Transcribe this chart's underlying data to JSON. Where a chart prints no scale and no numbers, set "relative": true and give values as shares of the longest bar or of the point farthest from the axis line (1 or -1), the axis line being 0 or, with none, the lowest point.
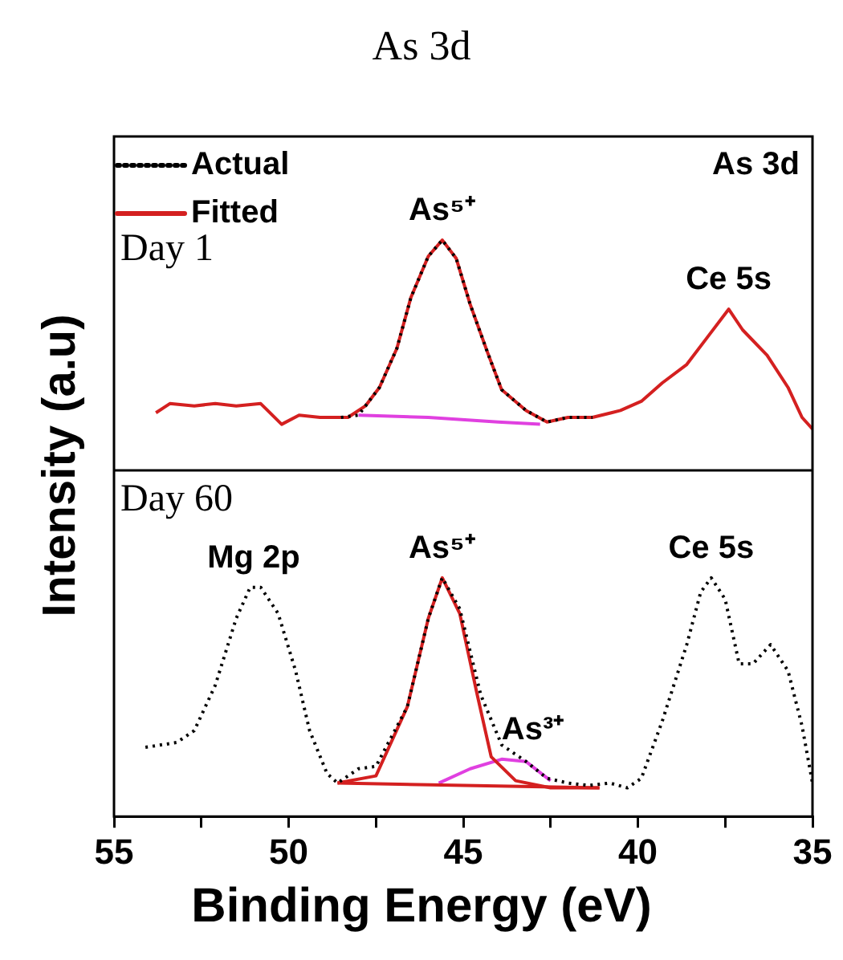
{
  "chart_data": [
    {
      "type": "line",
      "title": "As 3d",
      "subtitle": "Day 1",
      "ylabel": "Intensity (a.u)",
      "relative": true,
      "xlim": [
        55,
        35
      ],
      "tick_labels": false,
      "legend": "top left",
      "annotations": [
        "As 3d",
        {
          "text": "As⁵⁺",
          "x": 45.6,
          "y": 1
        },
        {
          "text": "Ce 5s",
          "x": 37.4,
          "y": 0.7
        }
      ],
      "series": [
        {
          "name": "Actual",
          "color": "#000000",
          "line_style": "dotted",
          "x": [
            48.5,
            48.0,
            47.4,
            46.9,
            46.5,
            46.0,
            45.6,
            45.2,
            44.8,
            44.3,
            43.9,
            43.2,
            42.6,
            42.0,
            41.3
          ],
          "values": [
            0.23,
            0.24,
            0.36,
            0.53,
            0.75,
            0.93,
            1,
            0.92,
            0.72,
            0.51,
            0.35,
            0.26,
            0.21,
            0.23,
            0.23
          ]
        },
        {
          "name": "Fitted",
          "color": "#d42020",
          "x": [
            53.8,
            53.4,
            52.7,
            52.1,
            51.5,
            50.8,
            50.2,
            49.7,
            49.1,
            48.3,
            47.8,
            47.4,
            46.9,
            46.5,
            46.0,
            45.6,
            45.2,
            44.8,
            44.3,
            43.9,
            43.2,
            42.6,
            42.0,
            41.3,
            40.5,
            39.9,
            39.3,
            38.6,
            38.0,
            37.4,
            37.0,
            36.3,
            35.7,
            35.3,
            35.0
          ],
          "values": [
            0.25,
            0.29,
            0.28,
            0.29,
            0.28,
            0.29,
            0.2,
            0.24,
            0.23,
            0.23,
            0.28,
            0.36,
            0.53,
            0.75,
            0.93,
            1,
            0.92,
            0.72,
            0.51,
            0.35,
            0.26,
            0.21,
            0.23,
            0.23,
            0.26,
            0.3,
            0.38,
            0.46,
            0.58,
            0.7,
            0.61,
            0.5,
            0.36,
            0.23,
            0.18
          ]
        },
        {
          "color": "#e040e0",
          "x": [
            48.0,
            46.0,
            44.0,
            42.8
          ],
          "values": [
            0.24,
            0.23,
            0.21,
            0.2
          ]
        }
      ]
    },
    {
      "type": "line",
      "subtitle": "Day 60",
      "xlabel": "Binding Energy (eV)",
      "relative": true,
      "xlim": [
        55,
        35
      ],
      "tick_labels": "x",
      "xticks": [
        55,
        {
          "value": 52.5,
          "label": null
        },
        50,
        {
          "value": 47.5,
          "label": null
        },
        45,
        {
          "value": 42.5,
          "label": null
        },
        40,
        {
          "value": 37.5,
          "label": null
        },
        35
      ],
      "annotations": [
        {
          "text": "Mg 2p",
          "x": 51.0,
          "y": 0.96
        },
        {
          "text": "As⁵⁺",
          "x": 45.6,
          "y": 1
        },
        {
          "text": "As³⁺",
          "x": 43.0,
          "y": 0.24
        },
        {
          "text": "Ce 5s",
          "x": 37.9,
          "y": 1
        }
      ],
      "series": [
        {
          "color": "#000000",
          "line_style": "dotted",
          "x": [
            54.1,
            53.2,
            52.7,
            52.1,
            51.5,
            51.1,
            50.8,
            50.3,
            49.8,
            49.4,
            48.9,
            48.6,
            48.0,
            47.5,
            46.6,
            46.0,
            45.6,
            45.1,
            44.5,
            43.9,
            43.2,
            42.6,
            42.0,
            41.4,
            40.8,
            40.3,
            39.9,
            39.3,
            38.6,
            38.2,
            37.9,
            37.5,
            37.1,
            36.7,
            36.2,
            35.7,
            35.3,
            35.0
          ],
          "values": [
            0.29,
            0.31,
            0.36,
            0.55,
            0.83,
            0.96,
            0.96,
            0.85,
            0.61,
            0.36,
            0.18,
            0.14,
            0.2,
            0.21,
            0.46,
            0.83,
            1,
            0.87,
            0.51,
            0.3,
            0.23,
            0.16,
            0.14,
            0.13,
            0.14,
            0.12,
            0.16,
            0.4,
            0.72,
            0.94,
            1,
            0.91,
            0.64,
            0.64,
            0.72,
            0.61,
            0.38,
            0.14
          ]
        },
        {
          "color": "#d42020",
          "x": [
            48.6,
            47.5,
            46.6,
            46.0,
            45.6,
            45.1,
            44.6,
            44.2,
            43.5,
            42.5,
            41.1
          ],
          "values": [
            0.14,
            0.17,
            0.46,
            0.83,
            1,
            0.85,
            0.51,
            0.25,
            0.15,
            0.12,
            0.12
          ]
        },
        {
          "color": "#d42020",
          "x": [
            48.6,
            41.1
          ],
          "values": [
            0.14,
            0.12
          ]
        },
        {
          "color": "#e040e0",
          "x": [
            45.7,
            44.8,
            43.9,
            43.2,
            42.5
          ],
          "values": [
            0.14,
            0.2,
            0.24,
            0.23,
            0.15
          ]
        }
      ]
    }
  ]
}
